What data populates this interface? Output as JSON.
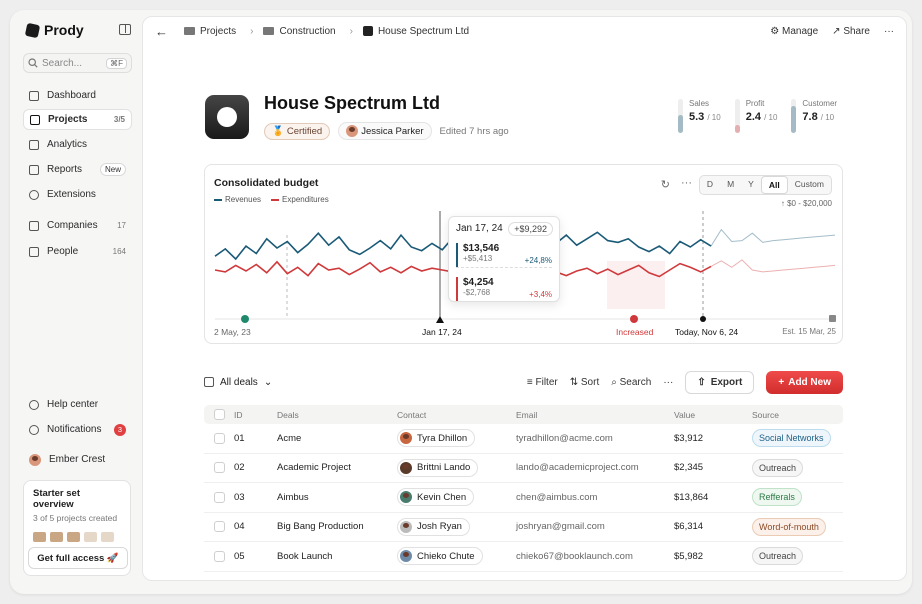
{
  "app": {
    "name": "Prody"
  },
  "sidebar": {
    "search_placeholder": "Search...",
    "search_shortcut": "⌘F",
    "items": [
      {
        "label": "Dashboard",
        "icon": "dashboard-icon"
      },
      {
        "label": "Projects",
        "count": "3/5",
        "icon": "folder-icon",
        "active": true
      },
      {
        "label": "Analytics",
        "icon": "analytics-icon"
      },
      {
        "label": "Reports",
        "badge": "New",
        "icon": "reports-icon"
      },
      {
        "label": "Extensions",
        "icon": "puzzle-icon"
      },
      {
        "label": "Companies",
        "count": "17",
        "icon": "cube-icon"
      },
      {
        "label": "People",
        "count": "164",
        "icon": "people-icon"
      }
    ],
    "bottom_items": [
      {
        "label": "Help center",
        "icon": "help-icon"
      },
      {
        "label": "Notifications",
        "badge": "3",
        "icon": "bell-icon"
      },
      {
        "label": "Ember Crest",
        "icon": "avatar"
      }
    ],
    "starter": {
      "title": "Starter set overview",
      "subtitle": "3 of 5 projects created",
      "button": "Get full access 🚀",
      "created": 3,
      "total": 5
    }
  },
  "topbar": {
    "breadcrumb": [
      "Projects",
      "Construction",
      "House Spectrum Ltd"
    ],
    "manage": "Manage",
    "share": "Share",
    "more": "···"
  },
  "project": {
    "name": "House Spectrum Ltd",
    "certified": "Certified",
    "owner": "Jessica Parker",
    "edited": "Edited 7 hrs ago"
  },
  "kpis": [
    {
      "label": "Sales",
      "value": "5.3",
      "max": "/ 10",
      "color": "#1a5a77"
    },
    {
      "label": "Profit",
      "value": "2.4",
      "max": "/ 10",
      "color": "#d0393b"
    },
    {
      "label": "Customer",
      "value": "7.8",
      "max": "/ 10",
      "color": "#1a5a77"
    }
  ],
  "chart": {
    "title": "Consolidated budget",
    "legend": [
      "Revenues",
      "Expenditures"
    ],
    "periods": [
      "D",
      "M",
      "Y",
      "All",
      "Custom"
    ],
    "active_period": "All",
    "range": "↑ $0 - $20,000",
    "xlabels": [
      "2 May, 23",
      "Jan 17, 24",
      "Increased",
      "Today, Nov 6, 24",
      "Est. 15 Mar, 25"
    ],
    "tooltip": {
      "date": "Jan 17, 24",
      "delta": "+$9,292",
      "revenue": "$13,546",
      "revenue_sub": "+$5,413",
      "revenue_pct": "+24,8%",
      "expense": "$4,254",
      "expense_sub": "-$2,768",
      "expense_pct": "+3,4%"
    },
    "colors": {
      "revenue": "#1a5a77",
      "expense": "#d0393b"
    }
  },
  "chart_data": {
    "type": "line",
    "title": "Consolidated budget",
    "series": [
      {
        "name": "Revenues",
        "values": [
          5.3,
          6.1,
          5.0,
          6.4,
          5.6,
          7.2,
          6.2,
          6.9,
          5.7,
          6.6,
          7.8,
          6.5,
          7.4,
          6.0,
          5.5,
          6.2,
          7.0,
          6.1,
          7.6,
          6.3,
          5.9,
          6.7,
          6.0,
          7.3,
          6.4,
          6.0,
          6.8,
          7.2,
          6.5,
          7.1,
          6.2,
          6.6,
          7.0,
          6.7,
          7.6,
          6.5,
          7.2,
          7.9,
          7.0,
          6.8,
          7.2,
          6.3,
          5.8,
          6.4,
          5.6,
          6.9,
          6.3,
          7.1,
          6.4,
          8.2,
          6.9,
          7.0,
          7.8,
          6.8,
          7.0,
          7.1,
          7.2,
          7.3,
          7.4,
          7.5,
          7.6
        ]
      },
      {
        "name": "Expenditures",
        "values": [
          3.8,
          3.6,
          4.3,
          3.7,
          4.4,
          3.5,
          4.7,
          3.4,
          4.1,
          3.2,
          4.5,
          3.8,
          4.0,
          3.3,
          3.9,
          4.6,
          3.6,
          4.1,
          3.5,
          4.2,
          3.7,
          4.0,
          3.8,
          3.6,
          4.3,
          3.4,
          3.9,
          4.1,
          3.6,
          4.7,
          4.4,
          3.7,
          4.1,
          3.6,
          3.2,
          3.7,
          4.0,
          3.4,
          3.9,
          3.3,
          3.8,
          4.3,
          3.5,
          3.1,
          3.8,
          4.5,
          4.1,
          3.6,
          4.2,
          4.8,
          4.1,
          4.9,
          3.8,
          3.6,
          3.7,
          3.8,
          3.9,
          4.0,
          4.1,
          4.2,
          4.3
        ]
      }
    ],
    "ylim": [
      0,
      10
    ]
  },
  "deals_toolbar": {
    "view": "All deals",
    "filter": "Filter",
    "sort": "Sort",
    "search": "Search",
    "export": "Export",
    "new_deal": "Add New"
  },
  "table": {
    "columns": [
      "ID",
      "Deals",
      "Contact",
      "Email",
      "Value",
      "Source"
    ],
    "rows": [
      {
        "id": "01",
        "deal": "Acme",
        "contact": "Tyra Dhillon",
        "email": "tyradhillon@acme.com",
        "value": "$3,912",
        "source": "Social Networks",
        "src_bg": "#eef6fb",
        "src_border": "#bcdcee",
        "src_color": "#1d5f87",
        "avatar": "#c8663f"
      },
      {
        "id": "02",
        "deal": "Academic Project",
        "contact": "Brittni Lando",
        "email": "lando@academicproject.com",
        "value": "$2,345",
        "source": "Outreach",
        "src_bg": "#f6f6f6",
        "src_border": "#dadada",
        "src_color": "#444444",
        "avatar": "#5a3a2a"
      },
      {
        "id": "03",
        "deal": "Aimbus",
        "contact": "Kevin Chen",
        "email": "chen@aimbus.com",
        "value": "$13,864",
        "source": "Refferals",
        "src_bg": "#eef8f1",
        "src_border": "#bfe2c8",
        "src_color": "#2d7a45",
        "avatar": "#4a7c6e"
      },
      {
        "id": "04",
        "deal": "Big Bang Production",
        "contact": "Josh Ryan",
        "email": "joshryan@gmail.com",
        "value": "$6,314",
        "source": "Word-of-mouth",
        "src_bg": "#fbf1ea",
        "src_border": "#ebcbb4",
        "src_color": "#8b4a26",
        "avatar": "#bbbbbb"
      },
      {
        "id": "05",
        "deal": "Book Launch",
        "contact": "Chieko Chute",
        "email": "chieko67@booklaunch.com",
        "value": "$5,982",
        "source": "Outreach",
        "src_bg": "#f6f6f6",
        "src_border": "#dadada",
        "src_color": "#444444",
        "avatar": "#6d8aa8"
      }
    ]
  }
}
